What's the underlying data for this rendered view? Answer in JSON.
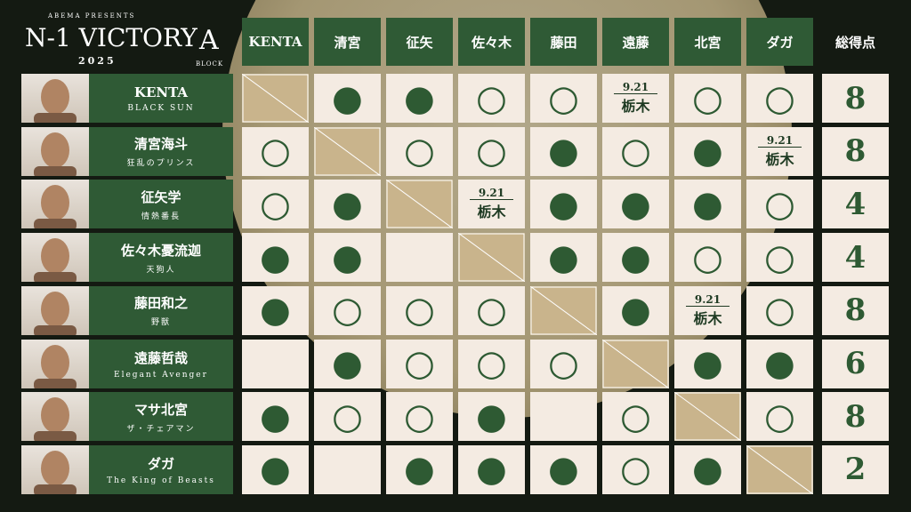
{
  "header": {
    "presenter": "ABEMA PRESENTS",
    "title": "N-1 VICTORY",
    "year": "2025",
    "block": "A",
    "block_label": "BLOCK"
  },
  "table": {
    "columns": [
      "KENTA",
      "清宮",
      "征矢",
      "佐々木",
      "藤田",
      "遠藤",
      "北宮",
      "ダガ"
    ],
    "points_header": "総得点",
    "rows": [
      {
        "name": "KENTA",
        "subtitle": "BLACK SUN",
        "results": [
          null,
          "●",
          "●",
          "○",
          "○",
          {
            "date": "9.21",
            "venue": "栃木"
          },
          "○",
          "○"
        ],
        "points": "8"
      },
      {
        "name": "清宮海斗",
        "subtitle": "狂乱のプリンス",
        "results": [
          "○",
          null,
          "○",
          "○",
          "●",
          "○",
          "●",
          {
            "date": "9.21",
            "venue": "栃木"
          }
        ],
        "points": "8"
      },
      {
        "name": "征矢学",
        "subtitle": "情熱番長",
        "results": [
          "○",
          "●",
          null,
          {
            "date": "9.21",
            "venue": "栃木"
          },
          "●",
          "●",
          "●",
          "○"
        ],
        "points": "4"
      },
      {
        "name": "佐々木憂流迦",
        "subtitle": "天狗人",
        "results": [
          "●",
          "●",
          null,
          null,
          "●",
          "●",
          "○",
          "○"
        ],
        "points": "4"
      },
      {
        "name": "藤田和之",
        "subtitle": "野獣",
        "results": [
          "●",
          "○",
          "○",
          "○",
          null,
          "●",
          {
            "date": "9.21",
            "venue": "栃木"
          },
          "○"
        ],
        "points": "8"
      },
      {
        "name": "遠藤哲哉",
        "subtitle": "Elegant Avenger",
        "results": [
          null,
          "●",
          "○",
          "○",
          "○",
          null,
          "●",
          "●"
        ],
        "points": "6"
      },
      {
        "name": "マサ北宮",
        "subtitle": "ザ・チェアマン",
        "results": [
          "●",
          "○",
          "○",
          "●",
          null,
          "○",
          null,
          "○"
        ],
        "points": "8"
      },
      {
        "name": "ダガ",
        "subtitle": "The King of Beasts",
        "results": [
          "●",
          null,
          "●",
          "●",
          "●",
          "○",
          "●",
          null
        ],
        "points": "2"
      }
    ]
  }
}
